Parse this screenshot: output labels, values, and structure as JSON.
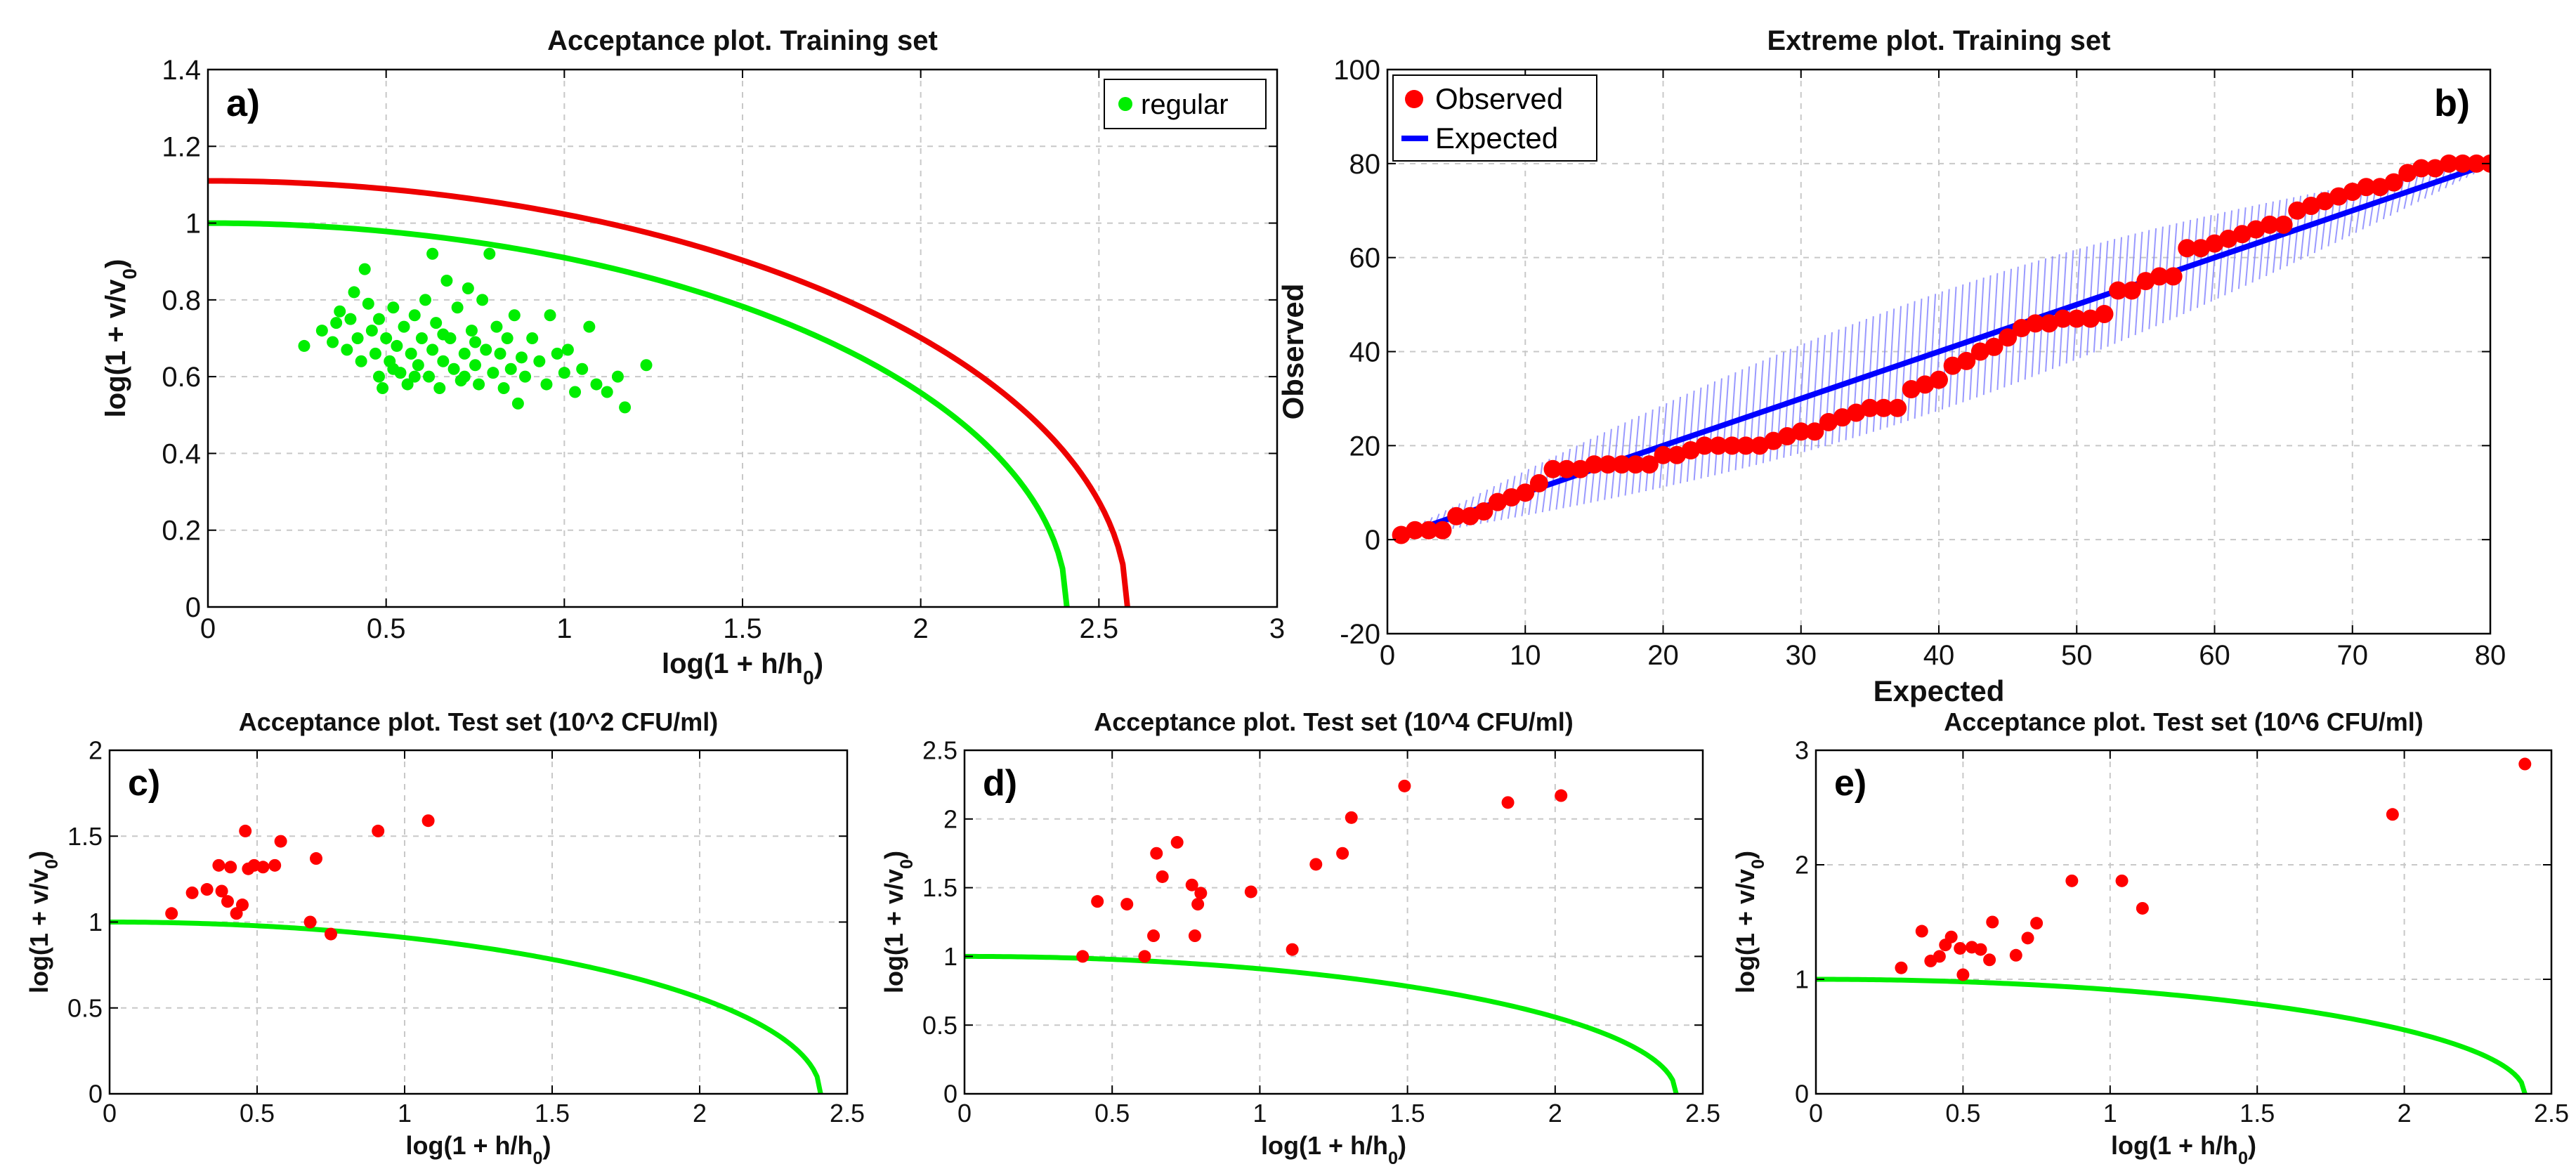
{
  "colors": {
    "green": "#00ee00",
    "red": "#ee0000",
    "marker_red": "#ff0000",
    "blue": "#0000ff",
    "band_blue": "#8888ff"
  },
  "chart_data": [
    {
      "id": "a",
      "type": "scatter",
      "letter": "a)",
      "title": "Acceptance plot. Training set",
      "xlabel": "log(1 + h/h",
      "xlabel_sub": "0",
      "xlabel_end": ")",
      "ylabel": "log(1 + v/v",
      "ylabel_sub": "0",
      "ylabel_end": ")",
      "xlim": [
        0,
        3
      ],
      "ylim": [
        0,
        1.4
      ],
      "xticks": [
        0,
        0.5,
        1,
        1.5,
        2,
        2.5,
        3
      ],
      "xtick_labels": [
        "0",
        "0.5",
        "1",
        "1.5",
        "2",
        "2.5",
        "3"
      ],
      "yticks": [
        0,
        0.2,
        0.4,
        0.6,
        0.8,
        1,
        1.2,
        1.4
      ],
      "ytick_labels": [
        "0",
        "0.2",
        "0.4",
        "0.6",
        "0.8",
        "1",
        "1.2",
        "1.4"
      ],
      "grid": true,
      "legend": [
        {
          "label": "regular",
          "color": "green",
          "marker": "dot"
        }
      ],
      "legend_position": "top-right",
      "curves": [
        {
          "name": "upper-limit",
          "color": "red",
          "y0": 1.11,
          "xmax": 2.58,
          "power": 2
        },
        {
          "name": "lower-limit",
          "color": "green",
          "y0": 1.0,
          "xmax": 2.41,
          "power": 2
        }
      ],
      "points_color": "green",
      "points": [
        [
          0.27,
          0.68
        ],
        [
          0.32,
          0.72
        ],
        [
          0.35,
          0.69
        ],
        [
          0.37,
          0.77
        ],
        [
          0.39,
          0.67
        ],
        [
          0.4,
          0.75
        ],
        [
          0.41,
          0.82
        ],
        [
          0.42,
          0.7
        ],
        [
          0.43,
          0.64
        ],
        [
          0.44,
          0.88
        ],
        [
          0.45,
          0.79
        ],
        [
          0.46,
          0.72
        ],
        [
          0.47,
          0.66
        ],
        [
          0.48,
          0.6
        ],
        [
          0.48,
          0.75
        ],
        [
          0.49,
          0.57
        ],
        [
          0.5,
          0.7
        ],
        [
          0.51,
          0.64
        ],
        [
          0.52,
          0.78
        ],
        [
          0.53,
          0.68
        ],
        [
          0.54,
          0.61
        ],
        [
          0.55,
          0.73
        ],
        [
          0.56,
          0.58
        ],
        [
          0.57,
          0.66
        ],
        [
          0.58,
          0.76
        ],
        [
          0.59,
          0.63
        ],
        [
          0.6,
          0.7
        ],
        [
          0.61,
          0.8
        ],
        [
          0.62,
          0.6
        ],
        [
          0.63,
          0.67
        ],
        [
          0.63,
          0.92
        ],
        [
          0.64,
          0.74
        ],
        [
          0.65,
          0.57
        ],
        [
          0.66,
          0.64
        ],
        [
          0.67,
          0.85
        ],
        [
          0.68,
          0.7
        ],
        [
          0.69,
          0.62
        ],
        [
          0.7,
          0.78
        ],
        [
          0.71,
          0.59
        ],
        [
          0.72,
          0.66
        ],
        [
          0.73,
          0.83
        ],
        [
          0.74,
          0.72
        ],
        [
          0.75,
          0.63
        ],
        [
          0.75,
          0.69
        ],
        [
          0.76,
          0.58
        ],
        [
          0.77,
          0.8
        ],
        [
          0.78,
          0.67
        ],
        [
          0.79,
          0.92
        ],
        [
          0.8,
          0.61
        ],
        [
          0.81,
          0.73
        ],
        [
          0.82,
          0.66
        ],
        [
          0.83,
          0.57
        ],
        [
          0.84,
          0.7
        ],
        [
          0.85,
          0.62
        ],
        [
          0.86,
          0.76
        ],
        [
          0.87,
          0.53
        ],
        [
          0.88,
          0.65
        ],
        [
          0.89,
          0.6
        ],
        [
          0.91,
          0.7
        ],
        [
          0.93,
          0.64
        ],
        [
          0.95,
          0.58
        ],
        [
          0.96,
          0.76
        ],
        [
          0.98,
          0.66
        ],
        [
          1.0,
          0.61
        ],
        [
          1.01,
          0.67
        ],
        [
          1.03,
          0.56
        ],
        [
          1.05,
          0.62
        ],
        [
          1.07,
          0.73
        ],
        [
          1.09,
          0.58
        ],
        [
          1.12,
          0.56
        ],
        [
          1.15,
          0.6
        ],
        [
          1.17,
          0.52
        ],
        [
          1.23,
          0.63
        ],
        [
          0.36,
          0.74
        ],
        [
          0.52,
          0.62
        ],
        [
          0.58,
          0.6
        ],
        [
          0.66,
          0.71
        ],
        [
          0.72,
          0.6
        ]
      ]
    },
    {
      "id": "b",
      "type": "line",
      "letter": "b)",
      "title": "Extreme plot. Training set",
      "xlabel": "Expected",
      "ylabel": "Observed",
      "xlim": [
        0,
        80
      ],
      "ylim": [
        -20,
        100
      ],
      "xticks": [
        0,
        10,
        20,
        30,
        40,
        50,
        60,
        70,
        80
      ],
      "xtick_labels": [
        "0",
        "10",
        "20",
        "30",
        "40",
        "50",
        "60",
        "70",
        "80"
      ],
      "yticks": [
        -20,
        0,
        20,
        40,
        60,
        80,
        100
      ],
      "ytick_labels": [
        "-20",
        "0",
        "20",
        "40",
        "60",
        "80",
        "100"
      ],
      "grid": true,
      "legend": [
        {
          "label": "Observed",
          "color": "marker_red",
          "marker": "dot"
        },
        {
          "label": "Expected",
          "color": "blue",
          "marker": "line"
        }
      ],
      "legend_position": "top-left",
      "expected_line": [
        [
          1,
          1
        ],
        [
          80,
          80
        ]
      ],
      "band": {
        "half_width_max": 12,
        "color": "band_blue"
      },
      "observed": [
        [
          1,
          1
        ],
        [
          2,
          2
        ],
        [
          3,
          2
        ],
        [
          4,
          2
        ],
        [
          5,
          5
        ],
        [
          6,
          5
        ],
        [
          7,
          6
        ],
        [
          8,
          8
        ],
        [
          9,
          9
        ],
        [
          10,
          10
        ],
        [
          11,
          12
        ],
        [
          12,
          15
        ],
        [
          13,
          15
        ],
        [
          14,
          15
        ],
        [
          15,
          16
        ],
        [
          16,
          16
        ],
        [
          17,
          16
        ],
        [
          18,
          16
        ],
        [
          19,
          16
        ],
        [
          20,
          18
        ],
        [
          21,
          18
        ],
        [
          22,
          19
        ],
        [
          23,
          20
        ],
        [
          24,
          20
        ],
        [
          25,
          20
        ],
        [
          26,
          20
        ],
        [
          27,
          20
        ],
        [
          28,
          21
        ],
        [
          29,
          22
        ],
        [
          30,
          23
        ],
        [
          31,
          23
        ],
        [
          32,
          25
        ],
        [
          33,
          26
        ],
        [
          34,
          27
        ],
        [
          35,
          28
        ],
        [
          36,
          28
        ],
        [
          37,
          28
        ],
        [
          38,
          32
        ],
        [
          39,
          33
        ],
        [
          40,
          34
        ],
        [
          41,
          37
        ],
        [
          42,
          38
        ],
        [
          43,
          40
        ],
        [
          44,
          41
        ],
        [
          45,
          43
        ],
        [
          46,
          45
        ],
        [
          47,
          46
        ],
        [
          48,
          46
        ],
        [
          49,
          47
        ],
        [
          50,
          47
        ],
        [
          51,
          47
        ],
        [
          52,
          48
        ],
        [
          53,
          53
        ],
        [
          54,
          53
        ],
        [
          55,
          55
        ],
        [
          56,
          56
        ],
        [
          57,
          56
        ],
        [
          58,
          62
        ],
        [
          59,
          62
        ],
        [
          60,
          63
        ],
        [
          61,
          64
        ],
        [
          62,
          65
        ],
        [
          63,
          66
        ],
        [
          64,
          67
        ],
        [
          65,
          67
        ],
        [
          66,
          70
        ],
        [
          67,
          71
        ],
        [
          68,
          72
        ],
        [
          69,
          73
        ],
        [
          70,
          74
        ],
        [
          71,
          75
        ],
        [
          72,
          75
        ],
        [
          73,
          76
        ],
        [
          74,
          78
        ],
        [
          75,
          79
        ],
        [
          76,
          79
        ],
        [
          77,
          80
        ],
        [
          78,
          80
        ],
        [
          79,
          80
        ],
        [
          80,
          80
        ]
      ]
    },
    {
      "id": "c",
      "type": "scatter",
      "letter": "c)",
      "title": "Acceptance plot. Test set (10^2 CFU/ml)",
      "xlabel": "log(1 + h/h",
      "xlabel_sub": "0",
      "xlabel_end": ")",
      "ylabel": "log(1 + v/v",
      "ylabel_sub": "0",
      "ylabel_end": ")",
      "xlim": [
        0,
        2.5
      ],
      "ylim": [
        0,
        2
      ],
      "xticks": [
        0,
        0.5,
        1,
        1.5,
        2,
        2.5
      ],
      "xtick_labels": [
        "0",
        "0.5",
        "1",
        "1.5",
        "2",
        "2.5"
      ],
      "yticks": [
        0,
        0.5,
        1,
        1.5,
        2
      ],
      "ytick_labels": [
        "0",
        "0.5",
        "1",
        "1.5",
        "2"
      ],
      "grid": true,
      "curves": [
        {
          "name": "limit",
          "color": "green",
          "y0": 1.0,
          "xmax": 2.41,
          "power": 2
        }
      ],
      "points_color": "marker_red",
      "points": [
        [
          0.21,
          1.05
        ],
        [
          0.28,
          1.17
        ],
        [
          0.33,
          1.19
        ],
        [
          0.37,
          1.33
        ],
        [
          0.38,
          1.18
        ],
        [
          0.4,
          1.12
        ],
        [
          0.41,
          1.32
        ],
        [
          0.43,
          1.05
        ],
        [
          0.45,
          1.1
        ],
        [
          0.46,
          1.53
        ],
        [
          0.47,
          1.31
        ],
        [
          0.49,
          1.33
        ],
        [
          0.52,
          1.32
        ],
        [
          0.56,
          1.33
        ],
        [
          0.58,
          1.47
        ],
        [
          0.68,
          1.0
        ],
        [
          0.7,
          1.37
        ],
        [
          0.75,
          0.93
        ],
        [
          0.91,
          1.53
        ],
        [
          1.08,
          1.59
        ]
      ]
    },
    {
      "id": "d",
      "type": "scatter",
      "letter": "d)",
      "title": "Acceptance plot. Test set (10^4 CFU/ml)",
      "xlabel": "log(1 + h/h",
      "xlabel_sub": "0",
      "xlabel_end": ")",
      "ylabel": "log(1 + v/v",
      "ylabel_sub": "0",
      "ylabel_end": ")",
      "xlim": [
        0,
        2.5
      ],
      "ylim": [
        0,
        2.5
      ],
      "xticks": [
        0,
        0.5,
        1,
        1.5,
        2,
        2.5
      ],
      "xtick_labels": [
        "0",
        "0.5",
        "1",
        "1.5",
        "2",
        "2.5"
      ],
      "yticks": [
        0,
        0.5,
        1,
        1.5,
        2,
        2.5
      ],
      "ytick_labels": [
        "0",
        "0.5",
        "1",
        "1.5",
        "2",
        "2.5"
      ],
      "grid": true,
      "curves": [
        {
          "name": "limit",
          "color": "green",
          "y0": 1.0,
          "xmax": 2.41,
          "power": 2
        }
      ],
      "points_color": "marker_red",
      "points": [
        [
          0.4,
          1.0
        ],
        [
          0.45,
          1.4
        ],
        [
          0.55,
          1.38
        ],
        [
          0.61,
          1.0
        ],
        [
          0.64,
          1.15
        ],
        [
          0.65,
          1.75
        ],
        [
          0.67,
          1.58
        ],
        [
          0.72,
          1.83
        ],
        [
          0.77,
          1.52
        ],
        [
          0.78,
          1.15
        ],
        [
          0.79,
          1.38
        ],
        [
          0.8,
          1.46
        ],
        [
          0.97,
          1.47
        ],
        [
          1.11,
          1.05
        ],
        [
          1.19,
          1.67
        ],
        [
          1.28,
          1.75
        ],
        [
          1.31,
          2.01
        ],
        [
          1.49,
          2.24
        ],
        [
          1.84,
          2.12
        ],
        [
          2.02,
          2.17
        ]
      ]
    },
    {
      "id": "e",
      "type": "scatter",
      "letter": "e)",
      "title": "Acceptance plot. Test set (10^6 CFU/ml)",
      "xlabel": "log(1 + h/h",
      "xlabel_sub": "0",
      "xlabel_end": ")",
      "ylabel": "log(1 + v/v",
      "ylabel_sub": "0",
      "ylabel_end": ")",
      "xlim": [
        0,
        2.5
      ],
      "ylim": [
        0,
        3
      ],
      "xticks": [
        0,
        0.5,
        1,
        1.5,
        2,
        2.5
      ],
      "xtick_labels": [
        "0",
        "0.5",
        "1",
        "1.5",
        "2",
        "2.5"
      ],
      "yticks": [
        0,
        1,
        2,
        3
      ],
      "ytick_labels": [
        "0",
        "1",
        "2",
        "3"
      ],
      "grid": true,
      "curves": [
        {
          "name": "limit",
          "color": "green",
          "y0": 1.0,
          "xmax": 2.41,
          "power": 2
        }
      ],
      "points_color": "marker_red",
      "points": [
        [
          0.29,
          1.1
        ],
        [
          0.36,
          1.42
        ],
        [
          0.39,
          1.16
        ],
        [
          0.42,
          1.2
        ],
        [
          0.44,
          1.3
        ],
        [
          0.46,
          1.37
        ],
        [
          0.49,
          1.27
        ],
        [
          0.5,
          1.04
        ],
        [
          0.53,
          1.28
        ],
        [
          0.56,
          1.26
        ],
        [
          0.59,
          1.17
        ],
        [
          0.6,
          1.5
        ],
        [
          0.68,
          1.21
        ],
        [
          0.72,
          1.36
        ],
        [
          0.75,
          1.49
        ],
        [
          0.87,
          1.86
        ],
        [
          1.04,
          1.86
        ],
        [
          1.11,
          1.62
        ],
        [
          1.96,
          2.44
        ],
        [
          2.41,
          2.88
        ]
      ]
    }
  ]
}
